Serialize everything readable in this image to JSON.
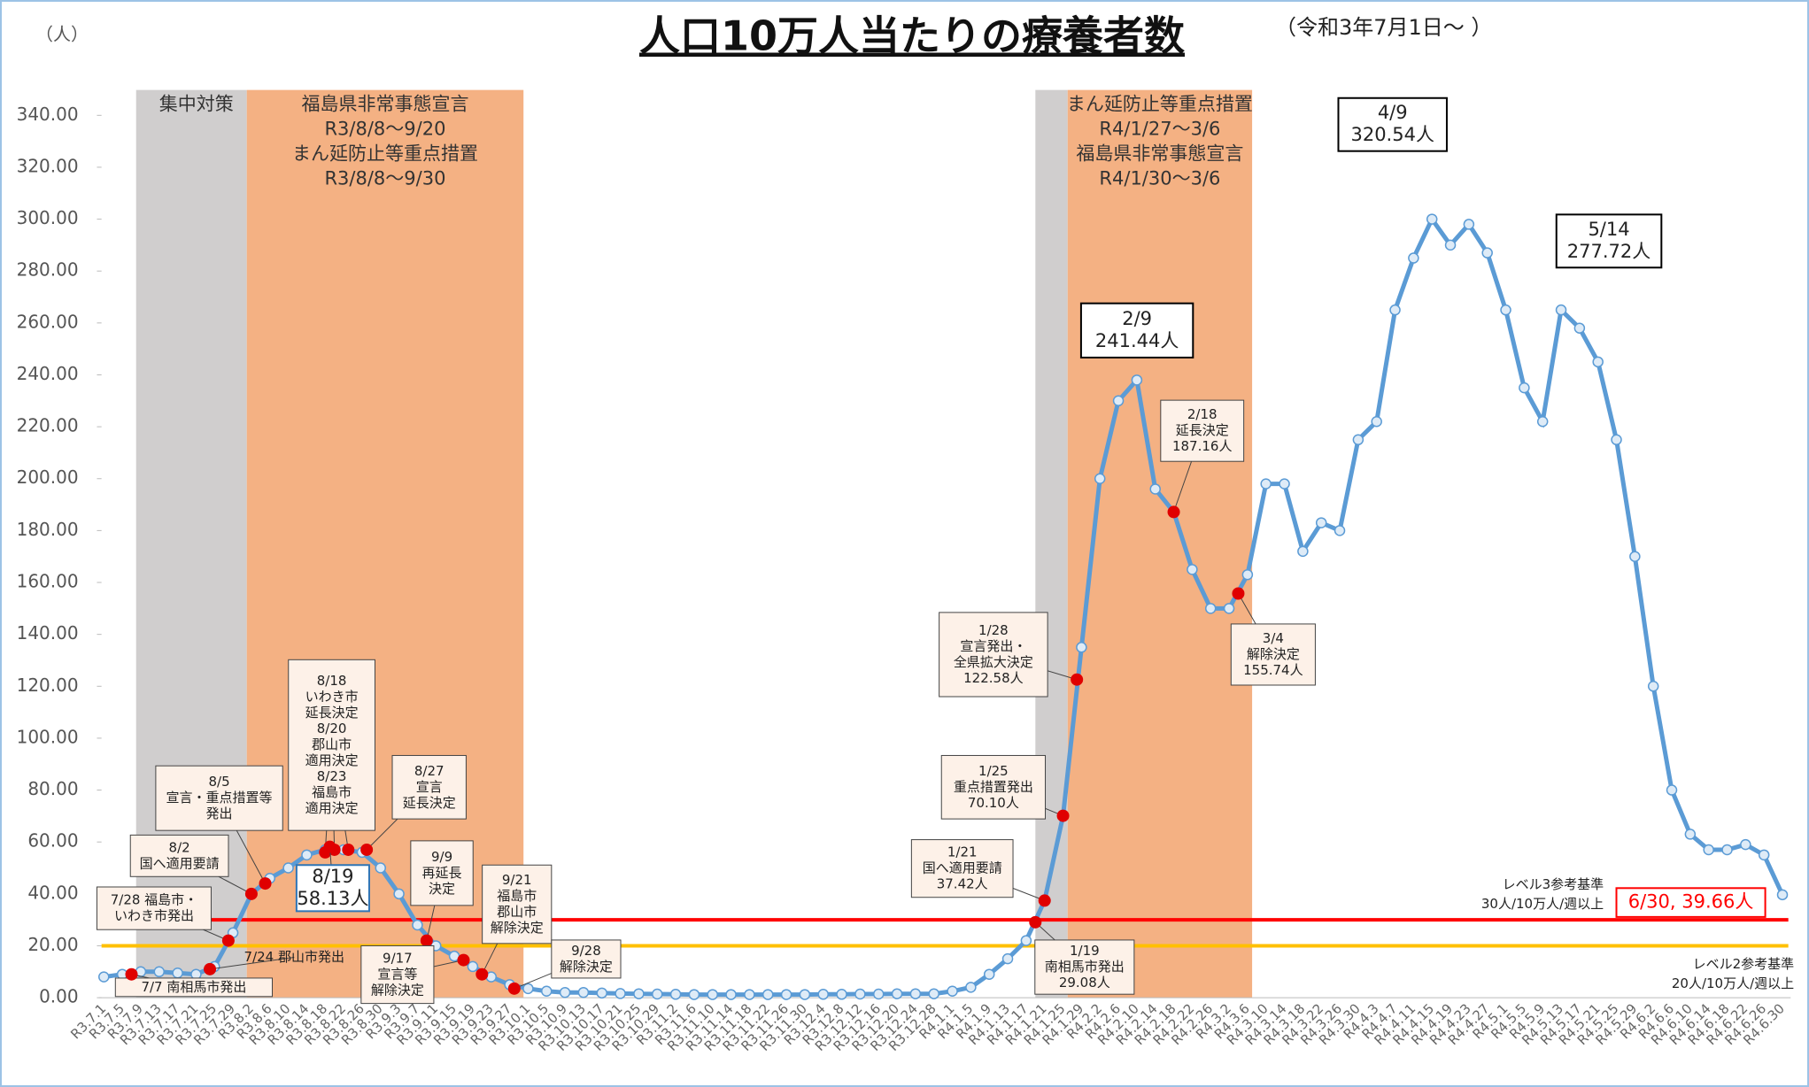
{
  "chart_data": {
    "type": "line",
    "title": "人口10万人当たりの療養者数",
    "subtitle": "（令和3年7月1日～ ）",
    "y_label": "（人）",
    "categories": [
      "R3.7.1",
      "R3.7.5",
      "R3.7.9",
      "R3.7.13",
      "R3.7.17",
      "R3.7.21",
      "R3.7.25",
      "R3.7.29",
      "R3.8.2",
      "R3.8.6",
      "R3.8.10",
      "R3.8.14",
      "R3.8.18",
      "R3.8.22",
      "R3.8.26",
      "R3.8.30",
      "R3.9.3",
      "R3.9.7",
      "R3.9.11",
      "R3.9.15",
      "R3.9.19",
      "R3.9.23",
      "R3.9.27",
      "R3.10.1",
      "R3.10.5",
      "R3.10.9",
      "R3.10.13",
      "R3.10.17",
      "R3.10.21",
      "R3.10.25",
      "R3.10.29",
      "R3.11.2",
      "R3.11.6",
      "R3.11.10",
      "R3.11.14",
      "R3.11.18",
      "R3.11.22",
      "R3.11.26",
      "R3.11.30",
      "R3.12.4",
      "R3.12.8",
      "R3.12.12",
      "R3.12.16",
      "R3.12.20",
      "R3.12.24",
      "R3.12.28",
      "R4.1.1",
      "R4.1.5",
      "R4.1.9",
      "R4.1.13",
      "R4.1.17",
      "R4.1.21",
      "R4.1.25",
      "R4.1.29",
      "R4.2.2",
      "R4.2.6",
      "R4.2.10",
      "R4.2.14",
      "R4.2.18",
      "R4.2.22",
      "R4.2.26",
      "R4.3.2",
      "R4.3.6",
      "R4.3.10",
      "R4.3.14",
      "R4.3.18",
      "R4.3.22",
      "R4.3.26",
      "R4.3.30",
      "R4.4.3",
      "R4.4.7",
      "R4.4.11",
      "R4.4.15",
      "R4.4.19",
      "R4.4.23",
      "R4.4.27",
      "R4.5.1",
      "R4.5.5",
      "R4.5.9",
      "R4.5.13",
      "R4.5.17",
      "R4.5.21",
      "R4.5.25",
      "R4.5.29",
      "R4.6.2",
      "R4.6.6",
      "R4.6.10",
      "R4.6.14",
      "R4.6.18",
      "R4.6.22",
      "R4.6.26",
      "R4.6.30"
    ],
    "series": [
      {
        "name": "療養者数",
        "color": "#5b9bd5",
        "values": [
          8,
          9,
          10,
          10,
          9.5,
          9,
          12,
          25,
          40,
          46,
          50,
          55,
          57,
          57,
          56,
          50,
          40,
          28,
          20,
          16,
          12,
          8,
          5,
          3.5,
          2.5,
          2,
          2,
          1.8,
          1.6,
          1.5,
          1.4,
          1.3,
          1.2,
          1.2,
          1.2,
          1.2,
          1.2,
          1.2,
          1.2,
          1.3,
          1.3,
          1.4,
          1.4,
          1.5,
          1.5,
          1.5,
          2.5,
          4,
          9,
          15,
          22,
          37.42,
          70.1,
          135,
          200,
          230,
          238,
          196,
          187.16,
          165,
          150,
          150,
          163,
          198,
          198,
          172,
          183,
          180,
          215,
          222,
          265,
          285,
          300,
          290,
          298,
          287,
          265,
          235,
          222,
          265,
          258,
          245,
          215,
          170,
          120,
          80,
          63,
          57,
          57,
          59,
          55,
          39.66
        ]
      }
    ],
    "ylim": [
      0,
      340
    ],
    "yticks": [
      {
        "value": 0,
        "label": "0.00"
      },
      {
        "value": 20,
        "label": "20.00"
      },
      {
        "value": 40,
        "label": "40.00"
      },
      {
        "value": 60,
        "label": "60.00"
      },
      {
        "value": 80,
        "label": "80.00"
      },
      {
        "value": 100,
        "label": "100.00"
      },
      {
        "value": 120,
        "label": "120.00"
      },
      {
        "value": 140,
        "label": "140.00"
      },
      {
        "value": 160,
        "label": "160.00"
      },
      {
        "value": 180,
        "label": "180.00"
      },
      {
        "value": 200,
        "label": "200.00"
      },
      {
        "value": 220,
        "label": "220.00"
      },
      {
        "value": 240,
        "label": "240.00"
      },
      {
        "value": 260,
        "label": "260.00"
      },
      {
        "value": 280,
        "label": "280.00"
      },
      {
        "value": 300,
        "label": "300.00"
      },
      {
        "value": 320,
        "label": "320.00"
      },
      {
        "value": 340,
        "label": "340.00"
      }
    ],
    "bands": [
      {
        "color": "#d0cece",
        "lines": [
          "集中対策"
        ]
      },
      {
        "color": "#f4b183",
        "lines": [
          "福島県非常事態宣言",
          "R3/8/8～9/20",
          "まん延防止等重点措置",
          "R3/8/8～9/30"
        ]
      },
      {
        "color": "#d0cece",
        "lines": []
      },
      {
        "color": "#f4b183",
        "lines": [
          "まん延防止等重点措置",
          "R4/1/27～3/6",
          "福島県非常事態宣言",
          "R4/1/30～3/6"
        ]
      }
    ],
    "reference_lines": [
      {
        "value": 30,
        "color": "#ff0000",
        "lines": [
          "レベル3参考基準",
          "30人/10万人/週以上"
        ]
      },
      {
        "value": 20,
        "color": "#ffc000",
        "lines": [
          "レベル2参考基準",
          "20人/10万人/週以上"
        ]
      }
    ],
    "annotations": [
      {
        "lines": [
          "7/7 南相馬市発出"
        ],
        "values": [
          9
        ],
        "dot_color": "#e00000",
        "box_color": "#444"
      },
      {
        "lines": [
          "7/24 郡山市発出"
        ],
        "values": [
          11
        ],
        "dot_color": "#e00000"
      },
      {
        "lines": [
          "7/28 福島市・",
          "いわき市発出"
        ],
        "values": [
          22
        ],
        "dot_color": "#e00000",
        "box_color": "#444"
      },
      {
        "lines": [
          "8/2",
          "国へ適用要請"
        ],
        "values": [
          40
        ],
        "dot_color": "#e00000",
        "box_color": "#444"
      },
      {
        "lines": [
          "8/5",
          "宣言・重点措置等",
          "発出"
        ],
        "values": [
          44
        ],
        "dot_color": "#e00000",
        "box_color": "#444"
      },
      {
        "lines": [
          "8/18",
          "いわき市",
          "延長決定",
          "8/20",
          "郡山市",
          "適用決定",
          "8/23",
          "福島市",
          "適用決定"
        ],
        "values": [
          56,
          57,
          57
        ],
        "dot_color": "#e00000",
        "box_color": "#444"
      },
      {
        "lines": [
          "8/19",
          "58.13人"
        ],
        "values": [
          58.13
        ],
        "dot_color": "#e00000",
        "box_color": "#2e75b6"
      },
      {
        "lines": [
          "8/27",
          "宣言",
          "延長決定"
        ],
        "values": [
          57
        ],
        "dot_color": "#e00000",
        "box_color": "#444"
      },
      {
        "lines": [
          "9/9",
          "再延長",
          "決定"
        ],
        "values": [
          22
        ],
        "dot_color": "#e00000",
        "box_color": "#444"
      },
      {
        "lines": [
          "9/17",
          "宣言等",
          "解除決定"
        ],
        "values": [
          14.5
        ],
        "dot_color": "#e00000",
        "box_color": "#444"
      },
      {
        "lines": [
          "9/21",
          "福島市",
          "郡山市",
          "解除決定"
        ],
        "values": [
          9
        ],
        "dot_color": "#e00000",
        "box_color": "#444"
      },
      {
        "lines": [
          "9/28",
          "解除決定"
        ],
        "values": [
          3.5
        ],
        "dot_color": "#e00000",
        "box_color": "#444"
      },
      {
        "lines": [
          "1/19",
          "南相馬市発出",
          "29.08人"
        ],
        "values": [
          29.08
        ],
        "dot_color": "#e00000",
        "box_color": "#444"
      },
      {
        "lines": [
          "1/21",
          "国へ適用要請",
          "37.42人"
        ],
        "values": [
          37.42
        ],
        "dot_color": "#e00000",
        "box_color": "#444"
      },
      {
        "lines": [
          "1/25",
          "重点措置発出",
          "70.10人"
        ],
        "values": [
          70.1
        ],
        "dot_color": "#e00000",
        "box_color": "#444"
      },
      {
        "lines": [
          "1/28",
          "宣言発出・",
          "全県拡大決定",
          "122.58人"
        ],
        "values": [
          122.58
        ],
        "dot_color": "#e00000",
        "box_color": "#444"
      },
      {
        "lines": [
          "2/9",
          "241.44人"
        ],
        "values": [
          241.44
        ],
        "box_color": "#000"
      },
      {
        "lines": [
          "2/18",
          "延長決定",
          "187.16人"
        ],
        "values": [
          187.16
        ],
        "dot_color": "#e00000",
        "box_color": "#444"
      },
      {
        "lines": [
          "3/4",
          "解除決定",
          "155.74人"
        ],
        "values": [
          155.74
        ],
        "dot_color": "#e00000",
        "box_color": "#444"
      },
      {
        "lines": [
          "4/9",
          "320.54人"
        ],
        "values": [
          320.54
        ],
        "box_color": "#000"
      },
      {
        "lines": [
          "5/14",
          "277.72人"
        ],
        "values": [
          277.72
        ],
        "box_color": "#000"
      },
      {
        "lines": [
          "6/30, 39.66人"
        ],
        "values": [
          39.66
        ],
        "box_color": "#ff0000",
        "text_color": "#ff0000"
      }
    ]
  }
}
